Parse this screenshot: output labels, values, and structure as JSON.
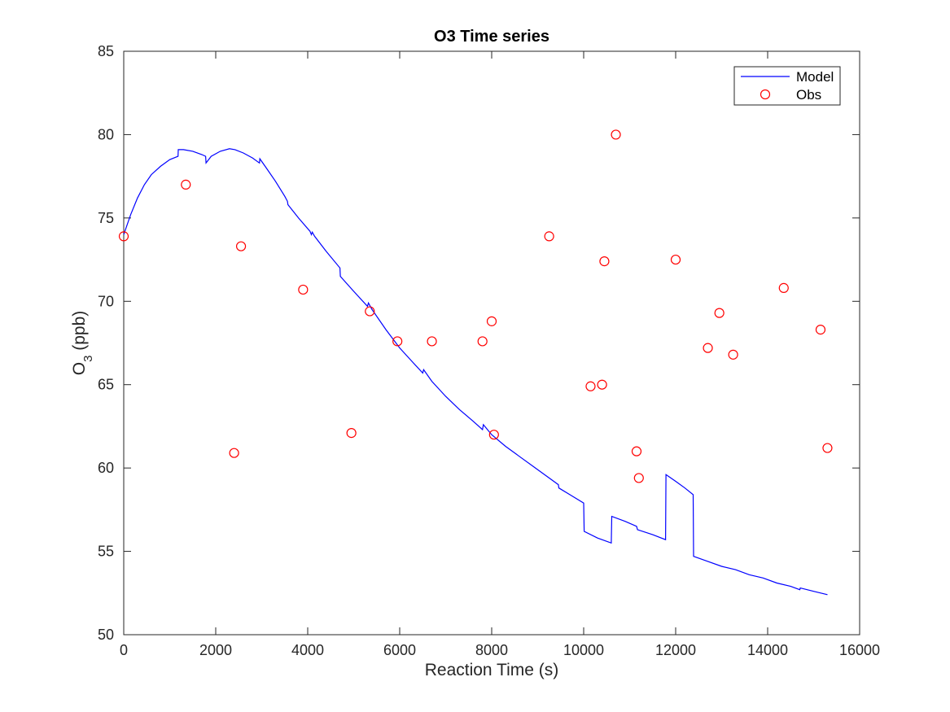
{
  "chart_data": {
    "type": "line",
    "title": "O3 Time series",
    "xlabel": "Reaction Time (s)",
    "ylabel": {
      "base": "O",
      "sub": "3",
      "rest": " (ppb)"
    },
    "xlim": [
      0,
      16000
    ],
    "ylim": [
      50,
      85
    ],
    "xticks": [
      0,
      2000,
      4000,
      6000,
      8000,
      10000,
      12000,
      14000,
      16000
    ],
    "yticks": [
      50,
      55,
      60,
      65,
      70,
      75,
      80,
      85
    ],
    "grid": false,
    "legend": {
      "position": "top-right"
    },
    "series": [
      {
        "name": "Model",
        "kind": "line",
        "color": "#0000ff",
        "points": [
          [
            0,
            74.0
          ],
          [
            150,
            75.2
          ],
          [
            300,
            76.2
          ],
          [
            450,
            77.0
          ],
          [
            600,
            77.6
          ],
          [
            800,
            78.1
          ],
          [
            1000,
            78.5
          ],
          [
            1180,
            78.7
          ],
          [
            1185,
            79.1
          ],
          [
            1300,
            79.1
          ],
          [
            1500,
            79.0
          ],
          [
            1700,
            78.8
          ],
          [
            1780,
            78.7
          ],
          [
            1790,
            78.3
          ],
          [
            1900,
            78.7
          ],
          [
            2100,
            79.0
          ],
          [
            2300,
            79.15
          ],
          [
            2420,
            79.1
          ],
          [
            2600,
            78.9
          ],
          [
            2800,
            78.6
          ],
          [
            2950,
            78.3
          ],
          [
            2960,
            78.55
          ],
          [
            3100,
            78.0
          ],
          [
            3300,
            77.2
          ],
          [
            3500,
            76.3
          ],
          [
            3560,
            76.0
          ],
          [
            3570,
            75.8
          ],
          [
            3800,
            75.0
          ],
          [
            4050,
            74.2
          ],
          [
            4080,
            74.0
          ],
          [
            4100,
            74.15
          ],
          [
            4150,
            73.9
          ],
          [
            4400,
            73.0
          ],
          [
            4700,
            72.0
          ],
          [
            4710,
            71.5
          ],
          [
            5000,
            70.6
          ],
          [
            5300,
            69.7
          ],
          [
            5320,
            69.9
          ],
          [
            5400,
            69.5
          ],
          [
            5700,
            68.3
          ],
          [
            6000,
            67.2
          ],
          [
            6300,
            66.3
          ],
          [
            6500,
            65.7
          ],
          [
            6520,
            65.9
          ],
          [
            6700,
            65.2
          ],
          [
            7000,
            64.3
          ],
          [
            7300,
            63.5
          ],
          [
            7600,
            62.8
          ],
          [
            7800,
            62.3
          ],
          [
            7820,
            62.6
          ],
          [
            8000,
            62.0
          ],
          [
            8300,
            61.3
          ],
          [
            8600,
            60.7
          ],
          [
            8900,
            60.1
          ],
          [
            9200,
            59.5
          ],
          [
            9450,
            59.0
          ],
          [
            9460,
            58.8
          ],
          [
            9700,
            58.4
          ],
          [
            10000,
            57.9
          ],
          [
            10010,
            56.2
          ],
          [
            10300,
            55.8
          ],
          [
            10600,
            55.5
          ],
          [
            10610,
            57.1
          ],
          [
            10900,
            56.8
          ],
          [
            11150,
            56.5
          ],
          [
            11170,
            56.3
          ],
          [
            11500,
            56.0
          ],
          [
            11780,
            55.7
          ],
          [
            11790,
            59.6
          ],
          [
            12000,
            59.2
          ],
          [
            12200,
            58.8
          ],
          [
            12380,
            58.4
          ],
          [
            12390,
            54.7
          ],
          [
            12700,
            54.4
          ],
          [
            13000,
            54.1
          ],
          [
            13300,
            53.9
          ],
          [
            13600,
            53.6
          ],
          [
            13900,
            53.4
          ],
          [
            14200,
            53.1
          ],
          [
            14500,
            52.9
          ],
          [
            14700,
            52.7
          ],
          [
            14710,
            52.8
          ],
          [
            15000,
            52.6
          ],
          [
            15300,
            52.4
          ]
        ]
      },
      {
        "name": "Obs",
        "kind": "scatter",
        "color": "#ff0000",
        "points": [
          [
            0,
            73.9
          ],
          [
            1350,
            77.0
          ],
          [
            2400,
            60.9
          ],
          [
            2550,
            73.3
          ],
          [
            3900,
            70.7
          ],
          [
            4950,
            62.1
          ],
          [
            5350,
            69.4
          ],
          [
            5950,
            67.6
          ],
          [
            6700,
            67.6
          ],
          [
            7800,
            67.6
          ],
          [
            8000,
            68.8
          ],
          [
            8050,
            62.0
          ],
          [
            9250,
            73.9
          ],
          [
            10150,
            64.9
          ],
          [
            10400,
            65.0
          ],
          [
            10450,
            72.4
          ],
          [
            10700,
            80.0
          ],
          [
            11150,
            61.0
          ],
          [
            11200,
            59.4
          ],
          [
            12000,
            72.5
          ],
          [
            12700,
            67.2
          ],
          [
            12950,
            69.3
          ],
          [
            13250,
            66.8
          ],
          [
            14350,
            70.8
          ],
          [
            15150,
            68.3
          ],
          [
            15300,
            61.2
          ]
        ]
      }
    ]
  }
}
